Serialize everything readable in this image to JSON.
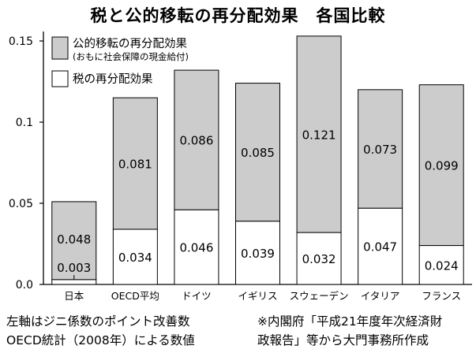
{
  "chart_data": {
    "type": "bar",
    "stacked": true,
    "title": "税と公的移転の再分配効果　各国比較",
    "categories": [
      "日本",
      "OECD平均",
      "ドイツ",
      "イギリス",
      "スウェーデン",
      "イタリア",
      "フランス"
    ],
    "series": [
      {
        "name": "税の再分配効果",
        "values": [
          0.003,
          0.034,
          0.046,
          0.039,
          0.032,
          0.047,
          0.024
        ],
        "labels": [
          "0.003",
          "0.034",
          "0.046",
          "0.039",
          "0.032",
          "0.047",
          "0.024"
        ],
        "color": "#ffffff"
      },
      {
        "name": "公的移転の再分配効果",
        "note": "(おもに社会保障の現金給付)",
        "values": [
          0.048,
          0.081,
          0.086,
          0.085,
          0.121,
          0.073,
          0.099
        ],
        "labels": [
          "0.048",
          "0.081",
          "0.086",
          "0.085",
          "0.121",
          "0.073",
          "0.099"
        ],
        "color": "#cccccc"
      }
    ],
    "ylim": [
      0,
      0.155
    ],
    "yticks": [
      0.0,
      0.05,
      0.1,
      0.15
    ],
    "ytick_labels": [
      "0.0",
      "0.05",
      "0.1",
      "0.15"
    ],
    "xlabel": "",
    "ylabel": "",
    "grid": false,
    "legend_position": "top-left"
  },
  "notes": {
    "left": [
      "左軸はジニ係数のポイント改善数",
      "OECD統計（2008年）による数値"
    ],
    "right": [
      "※内閣府「平成21年度年次経済財",
      "政報告」等から大門事務所作成"
    ]
  }
}
